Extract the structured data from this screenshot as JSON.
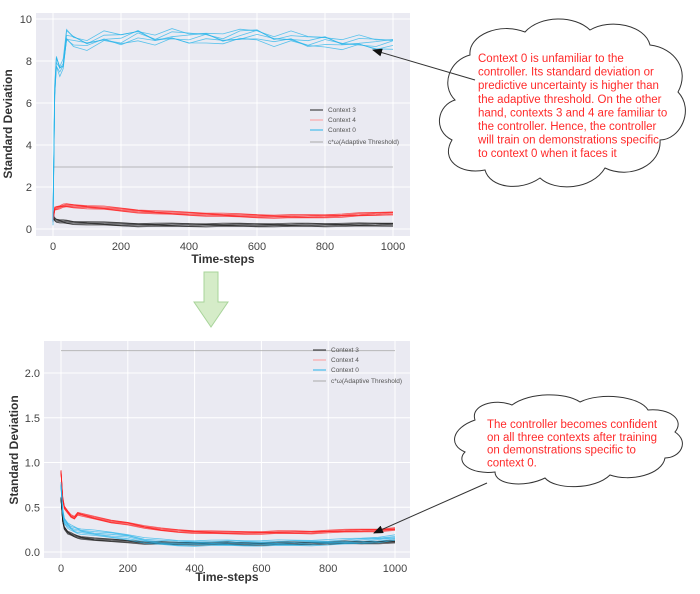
{
  "chart_data": [
    {
      "type": "line",
      "title": "",
      "xlabel": "Time-steps",
      "ylabel": "Standard Deviation",
      "xlim": [
        -30,
        1050
      ],
      "ylim": [
        -0.3,
        10
      ],
      "xticks": [
        "0",
        "200",
        "400",
        "600",
        "800",
        "1000"
      ],
      "yticks": [
        "0",
        "2",
        "4",
        "6",
        "8",
        "10"
      ],
      "grid": true,
      "legend_position": "center-right",
      "x": [
        0,
        5,
        10,
        20,
        30,
        40,
        60,
        100,
        150,
        200,
        250,
        300,
        350,
        400,
        450,
        500,
        550,
        600,
        650,
        700,
        750,
        800,
        850,
        900,
        950,
        1000
      ],
      "series": [
        {
          "name": "Context 3",
          "color": "#222222",
          "values": [
            0.6,
            0.45,
            0.4,
            0.38,
            0.35,
            0.33,
            0.3,
            0.28,
            0.25,
            0.22,
            0.2,
            0.2,
            0.19,
            0.19,
            0.19,
            0.19,
            0.19,
            0.19,
            0.19,
            0.19,
            0.2,
            0.2,
            0.2,
            0.2,
            0.21,
            0.22
          ]
        },
        {
          "name": "Context 4",
          "color": "#ff2020",
          "values": [
            0.4,
            0.95,
            1.0,
            1.05,
            1.1,
            1.12,
            1.1,
            1.05,
            1.0,
            0.92,
            0.85,
            0.8,
            0.76,
            0.73,
            0.7,
            0.67,
            0.64,
            0.62,
            0.6,
            0.6,
            0.6,
            0.62,
            0.64,
            0.68,
            0.72,
            0.76
          ]
        },
        {
          "name": "Context 0",
          "color": "#27b4ea",
          "values": [
            0.4,
            6.5,
            8.0,
            7.6,
            7.8,
            9.2,
            9.0,
            8.8,
            9.1,
            9.0,
            9.3,
            9.0,
            9.2,
            9.1,
            9.2,
            9.0,
            9.2,
            9.3,
            9.0,
            9.1,
            8.9,
            9.0,
            8.8,
            8.9,
            8.8,
            8.9
          ]
        },
        {
          "name": "c*ω(Adaptive Threshold)",
          "color": "#aaaaaa",
          "values": [
            2.95,
            2.95,
            2.95,
            2.95,
            2.95,
            2.95,
            2.95,
            2.95,
            2.95,
            2.95,
            2.95,
            2.95,
            2.95,
            2.95,
            2.95,
            2.95,
            2.95,
            2.95,
            2.95,
            2.95,
            2.95,
            2.95,
            2.95,
            2.95,
            2.95,
            2.95
          ]
        }
      ]
    },
    {
      "type": "line",
      "title": "",
      "xlabel": "Time-steps",
      "ylabel": "Standard Deviation",
      "xlim": [
        -30,
        1050
      ],
      "ylim": [
        -0.03,
        2.35
      ],
      "xticks": [
        "0",
        "200",
        "400",
        "600",
        "800",
        "1000"
      ],
      "yticks": [
        "0.0",
        "0.5",
        "1.0",
        "1.5",
        "2.0"
      ],
      "grid": true,
      "legend_position": "upper-right",
      "x": [
        0,
        5,
        10,
        20,
        30,
        40,
        50,
        60,
        100,
        150,
        200,
        250,
        300,
        350,
        400,
        450,
        500,
        550,
        600,
        650,
        700,
        750,
        800,
        850,
        900,
        950,
        1000
      ],
      "series": [
        {
          "name": "Context 3",
          "color": "#222222",
          "values": [
            0.6,
            0.35,
            0.27,
            0.22,
            0.2,
            0.18,
            0.17,
            0.16,
            0.14,
            0.13,
            0.12,
            0.1,
            0.1,
            0.095,
            0.095,
            0.095,
            0.095,
            0.09,
            0.09,
            0.095,
            0.095,
            0.1,
            0.1,
            0.105,
            0.105,
            0.11,
            0.115
          ]
        },
        {
          "name": "Context 4",
          "color": "#ff2020",
          "values": [
            0.9,
            0.6,
            0.5,
            0.45,
            0.4,
            0.38,
            0.43,
            0.42,
            0.38,
            0.34,
            0.32,
            0.28,
            0.25,
            0.235,
            0.225,
            0.22,
            0.215,
            0.215,
            0.215,
            0.22,
            0.22,
            0.22,
            0.23,
            0.235,
            0.24,
            0.245,
            0.255
          ]
        },
        {
          "name": "Context 0",
          "color": "#27b4ea",
          "values": [
            0.75,
            0.45,
            0.35,
            0.3,
            0.27,
            0.25,
            0.24,
            0.23,
            0.21,
            0.19,
            0.17,
            0.13,
            0.11,
            0.1,
            0.1,
            0.1,
            0.1,
            0.1,
            0.1,
            0.1,
            0.1,
            0.105,
            0.11,
            0.115,
            0.125,
            0.14,
            0.16
          ]
        },
        {
          "name": "c*ω(Adaptive Threshold)",
          "color": "#aaaaaa",
          "values": [
            2.25,
            2.25,
            2.25,
            2.25,
            2.25,
            2.25,
            2.25,
            2.25,
            2.25,
            2.25,
            2.25,
            2.25,
            2.25,
            2.25,
            2.25,
            2.25,
            2.25,
            2.25,
            2.25,
            2.25,
            2.25,
            2.25,
            2.25,
            2.25,
            2.25,
            2.25,
            2.25
          ]
        }
      ]
    }
  ],
  "top_chart": {
    "xlabel": "Time-steps",
    "ylabel": "Standard Deviation",
    "xticks": [
      "0",
      "200",
      "400",
      "600",
      "800",
      "1000"
    ],
    "yticks": [
      "0",
      "2",
      "4",
      "6",
      "8",
      "10"
    ],
    "legend": [
      "Context 3",
      "Context 4",
      "Context 0",
      "c*ω(Adaptive Threshold)"
    ]
  },
  "bottom_chart": {
    "xlabel": "Time-steps",
    "ylabel": "Standard Deviation",
    "xticks": [
      "0",
      "200",
      "400",
      "600",
      "800",
      "1000"
    ],
    "yticks": [
      "0.0",
      "0.5",
      "1.0",
      "1.5",
      "2.0"
    ],
    "legend": [
      "Context 3",
      "Context 4",
      "Context 0",
      "c*ω(Adaptive Threshold)"
    ]
  },
  "annotations": {
    "top_callout": [
      "Context 0 is unfamiliar to the",
      "controller. Its standard deviation or",
      "predictive uncertainty is higher than",
      "the adaptive threshold. On the other",
      "hand, contexts 3 and 4 are familiar to",
      "the controller. Hence, the controller",
      "will train on demonstrations specific",
      "to context 0 when it faces it"
    ],
    "bottom_callout": [
      "The controller becomes confident",
      "on all three contexts after training",
      "on demonstrations specific to",
      "context 0."
    ]
  },
  "colors": {
    "plot_bg": "#eaeaf2",
    "grid": "#ffffff",
    "context3": "#222222",
    "context4": "#ff2020",
    "context0": "#27b4ea",
    "threshold": "#aaaaaa",
    "note_text": "#ff2a2a",
    "transition_arrow": "#d5ecc8"
  }
}
